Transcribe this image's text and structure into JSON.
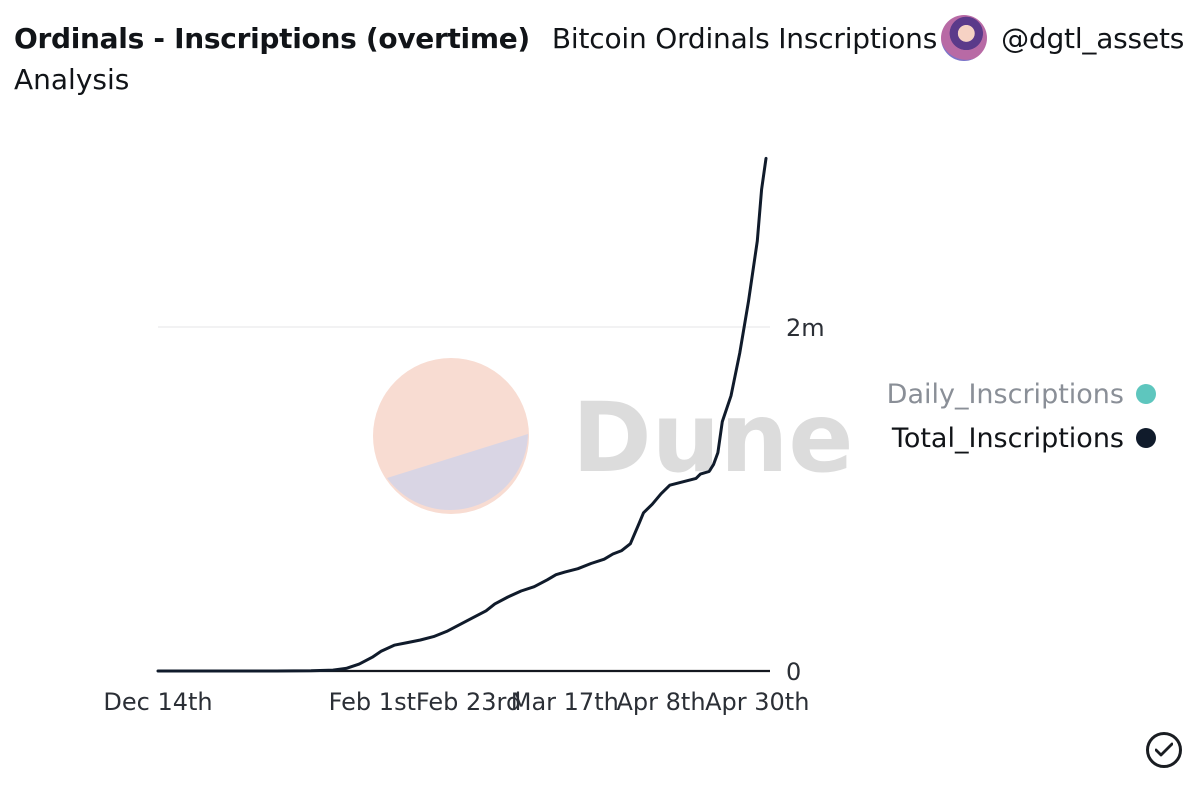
{
  "header": {
    "title": "Ordinals - Inscriptions (overtime)",
    "query_name": "Bitcoin Ordinals Inscriptions",
    "query_name_line2": "Analysis",
    "author": "@dgtl_assets",
    "avatar_icon": "user-avatar"
  },
  "watermark": {
    "text": "Dune"
  },
  "legend": {
    "items": [
      {
        "label": "Daily_Inscriptions",
        "color": "#5ec6be",
        "active": false
      },
      {
        "label": "Total_Inscriptions",
        "color": "#101b2b",
        "active": true
      }
    ]
  },
  "footer": {
    "icon": "check-circle-icon"
  },
  "chart_data": {
    "type": "line",
    "series": [
      {
        "name": "Total_Inscriptions",
        "x": [
          "2022-12-14",
          "2022-12-28",
          "2023-01-10",
          "2023-01-18",
          "2023-01-23",
          "2023-01-26",
          "2023-01-29",
          "2023-02-01",
          "2023-02-03",
          "2023-02-06",
          "2023-02-09",
          "2023-02-12",
          "2023-02-15",
          "2023-02-18",
          "2023-02-21",
          "2023-02-24",
          "2023-02-27",
          "2023-03-01",
          "2023-03-04",
          "2023-03-07",
          "2023-03-10",
          "2023-03-13",
          "2023-03-15",
          "2023-03-17",
          "2023-03-20",
          "2023-03-23",
          "2023-03-26",
          "2023-03-28",
          "2023-03-30",
          "2023-04-01",
          "2023-04-03",
          "2023-04-04",
          "2023-04-06",
          "2023-04-08",
          "2023-04-10",
          "2023-04-13",
          "2023-04-16",
          "2023-04-17",
          "2023-04-19",
          "2023-04-20",
          "2023-04-21",
          "2023-04-22",
          "2023-04-24",
          "2023-04-26",
          "2023-04-28",
          "2023-04-30",
          "2023-05-01",
          "2023-05-02"
        ],
        "y": [
          0,
          0,
          0,
          1000,
          5000,
          15000,
          40000,
          80000,
          115000,
          150000,
          165000,
          180000,
          200000,
          230000,
          270000,
          310000,
          350000,
          390000,
          430000,
          465000,
          490000,
          530000,
          560000,
          575000,
          595000,
          625000,
          650000,
          680000,
          700000,
          740000,
          860000,
          920000,
          970000,
          1030000,
          1080000,
          1100000,
          1120000,
          1145000,
          1160000,
          1200000,
          1270000,
          1450000,
          1600000,
          1850000,
          2150000,
          2500000,
          2800000,
          2980000
        ]
      },
      {
        "name": "Daily_Inscriptions",
        "x": [],
        "y": []
      }
    ],
    "x_ticks": [
      "Dec 14th",
      "Feb 1st",
      "Feb 23rd",
      "Mar 17th",
      "Apr 8th",
      "Apr 30th"
    ],
    "x_tick_dates": [
      "2022-12-14",
      "2023-02-01",
      "2023-02-23",
      "2023-03-17",
      "2023-04-08",
      "2023-04-30"
    ],
    "x_range": [
      "2022-12-14",
      "2023-05-02"
    ],
    "y_ticks": [
      {
        "value": 0,
        "label": "0"
      },
      {
        "value": 2000000,
        "label": "2m"
      }
    ],
    "ylim": [
      0,
      3000000
    ],
    "y_axis_side": "right",
    "grid": "horizontal",
    "legend_position": "right",
    "xlabel": "",
    "ylabel": ""
  }
}
